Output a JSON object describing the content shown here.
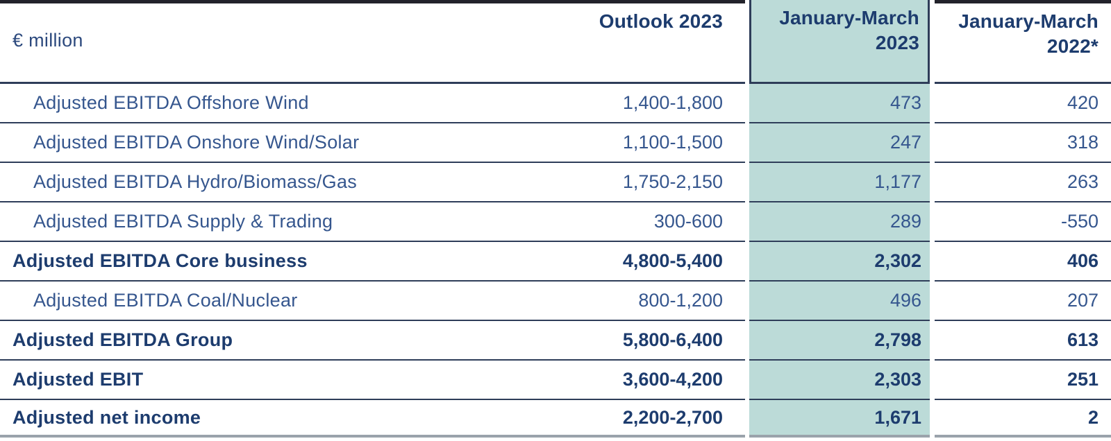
{
  "table": {
    "unit_label": "€ million",
    "columns": [
      {
        "label": "Outlook 2023",
        "highlighted": false
      },
      {
        "label": "January-March 2023",
        "highlighted": true
      },
      {
        "label": "January-March 2022*",
        "highlighted": false
      }
    ],
    "rows": [
      {
        "label": "Adjusted EBITDA Offshore Wind",
        "outlook_2023": "1,400-1,800",
        "jan_mar_2023": "473",
        "jan_mar_2022": "420",
        "bold": false
      },
      {
        "label": "Adjusted EBITDA Onshore Wind/Solar",
        "outlook_2023": "1,100-1,500",
        "jan_mar_2023": "247",
        "jan_mar_2022": "318",
        "bold": false
      },
      {
        "label": "Adjusted EBITDA Hydro/Biomass/Gas",
        "outlook_2023": "1,750-2,150",
        "jan_mar_2023": "1,177",
        "jan_mar_2022": "263",
        "bold": false
      },
      {
        "label": "Adjusted EBITDA Supply & Trading",
        "outlook_2023": "300-600",
        "jan_mar_2023": "289",
        "jan_mar_2022": "-550",
        "bold": false
      },
      {
        "label": "Adjusted EBITDA Core business",
        "outlook_2023": "4,800-5,400",
        "jan_mar_2023": "2,302",
        "jan_mar_2022": "406",
        "bold": true
      },
      {
        "label": "Adjusted EBITDA Coal/Nuclear",
        "outlook_2023": "800-1,200",
        "jan_mar_2023": "496",
        "jan_mar_2022": "207",
        "bold": false
      },
      {
        "label": "Adjusted EBITDA Group",
        "outlook_2023": "5,800-6,400",
        "jan_mar_2023": "2,798",
        "jan_mar_2022": "613",
        "bold": true
      },
      {
        "label": "Adjusted EBIT",
        "outlook_2023": "3,600-4,200",
        "jan_mar_2023": "2,303",
        "jan_mar_2022": "251",
        "bold": true
      },
      {
        "label": "Adjusted net income",
        "outlook_2023": "2,200-2,700",
        "jan_mar_2023": "1,671",
        "jan_mar_2022": "2",
        "bold": true
      }
    ]
  },
  "colors": {
    "accent_teal": "#bcdbd8",
    "navy_text": "#1d3c6e",
    "regular_text": "#35568e",
    "line": "#2e3d59",
    "top_border": "#23232b",
    "bottom_border": "#9aa3ab"
  }
}
